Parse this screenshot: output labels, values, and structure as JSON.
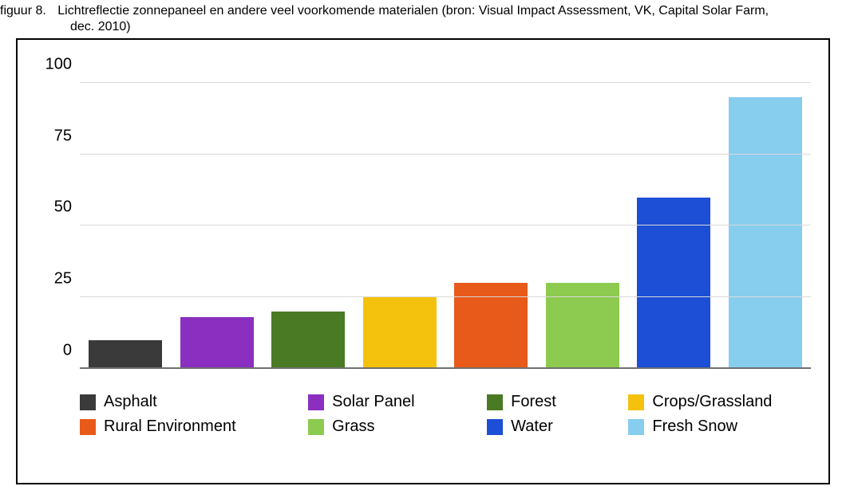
{
  "caption": {
    "label": "figuur 8.",
    "line1": "Lichtreflectie zonnepaneel en andere veel voorkomende materialen (bron: Visual Impact Assessment, VK, Capital Solar Farm,",
    "line2": "dec. 2010)",
    "font_size": 16,
    "color": "#000000"
  },
  "chart": {
    "type": "bar",
    "background_color": "#ffffff",
    "frame_border_color": "#000000",
    "frame_border_width": 2.5,
    "y": {
      "min": 0,
      "max": 110,
      "ticks": [
        0,
        25,
        50,
        75,
        100
      ],
      "tick_font_size": 20,
      "tick_color": "#000000"
    },
    "grid": {
      "color": "#d9d9d9",
      "baseline_color": "#707070"
    },
    "bar_width_pct": 10,
    "series": [
      {
        "name": "Asphalt",
        "value": 10,
        "color": "#3a3a3a"
      },
      {
        "name": "Solar Panel",
        "value": 18,
        "color": "#8a2fc0"
      },
      {
        "name": "Forest",
        "value": 20,
        "color": "#4a7a24"
      },
      {
        "name": "Crops/Grassland",
        "value": 25,
        "color": "#f4c20d"
      },
      {
        "name": "Rural Environment",
        "value": 30,
        "color": "#e85a1a"
      },
      {
        "name": "Grass",
        "value": 30,
        "color": "#8ccb4f"
      },
      {
        "name": "Water",
        "value": 60,
        "color": "#1c4fd6"
      },
      {
        "name": "Fresh Snow",
        "value": 95,
        "color": "#87cdee"
      }
    ],
    "legend": {
      "font_size": 20,
      "swatch_size": 20,
      "columns": 4,
      "order": [
        0,
        1,
        2,
        3,
        4,
        5,
        6,
        7
      ]
    }
  }
}
